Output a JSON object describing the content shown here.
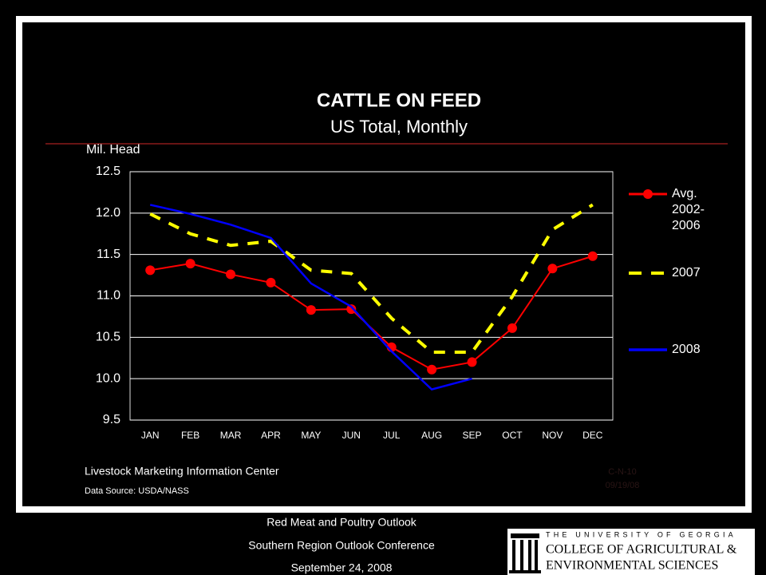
{
  "chart_data": {
    "type": "line",
    "title": "CATTLE ON FEED",
    "subtitle": "US Total, Monthly",
    "y_label": "Mil. Head",
    "categories": [
      "JAN",
      "FEB",
      "MAR",
      "APR",
      "MAY",
      "JUN",
      "JUL",
      "AUG",
      "SEP",
      "OCT",
      "NOV",
      "DEC"
    ],
    "series": [
      {
        "name": "Avg. 2002-2006",
        "color": "#ff0000",
        "values": [
          11.31,
          11.39,
          11.26,
          11.16,
          10.83,
          10.84,
          10.38,
          10.11,
          10.2,
          10.61,
          11.33,
          11.48
        ]
      },
      {
        "name": "2007",
        "color": "#ffff00",
        "values": [
          11.99,
          11.75,
          11.61,
          11.66,
          11.31,
          11.27,
          10.73,
          10.32,
          10.32,
          10.99,
          11.8,
          12.1
        ]
      },
      {
        "name": "2008",
        "color": "#0000ff",
        "values": [
          12.1,
          11.99,
          11.86,
          11.7,
          11.15,
          10.87,
          10.33,
          9.87,
          10.0,
          null,
          null,
          null
        ]
      }
    ],
    "ylim": [
      9.5,
      12.5
    ],
    "yticks": [
      {
        "value": 9.5,
        "label": "9.5"
      },
      {
        "value": 10,
        "label": "10.0"
      },
      {
        "value": 10.5,
        "label": "10.5"
      },
      {
        "value": 11,
        "label": "11.0"
      },
      {
        "value": 11.5,
        "label": "11.5"
      },
      {
        "value": 12,
        "label": "12.0"
      },
      {
        "value": 12.5,
        "label": "12.5"
      }
    ],
    "grid": true,
    "legend": "right",
    "source": "Livestock Marketing Information Center",
    "data_source": "Data Source: USDA/NASS",
    "code": "C-N-10",
    "date": "09/19/08"
  },
  "footer": {
    "lines": [
      "Red Meat and Poultry Outlook",
      "Southern Region Outlook Conference",
      "September 24, 2008"
    ]
  },
  "logo": {
    "university": "THE UNIVERSITY OF GEORGIA",
    "college": "COLLEGE OF AGRICULTURAL &",
    "school": "ENVIRONMENTAL SCIENCES"
  }
}
